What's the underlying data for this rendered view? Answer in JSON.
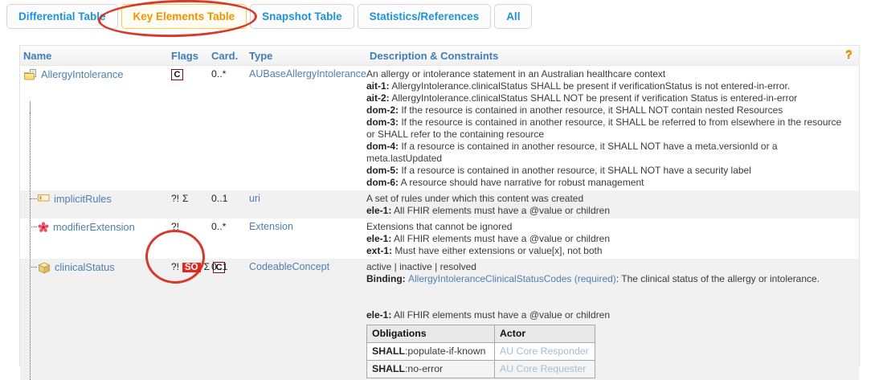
{
  "colors": {
    "tab_blue": "#1e93d6",
    "tab_active_orange": "#f39200",
    "tab_active_border": "#fcca4e",
    "header_blue": "#3f7cba",
    "link_blue": "#4e7fae",
    "pale_link": "#a3bdd7",
    "badge_red": "#e32a1e",
    "constraint_maroon": "#7c0b0b",
    "annotation_red": "#d6281a",
    "shaded_row": "#f1f1f1",
    "help_orange": "#f2a50c"
  },
  "tabs": {
    "items": [
      {
        "label": "Differential Table",
        "active": false
      },
      {
        "label": "Key Elements Table",
        "active": true
      },
      {
        "label": "Snapshot Table",
        "active": false
      },
      {
        "label": "Statistics/References",
        "active": false
      },
      {
        "label": "All",
        "active": false
      }
    ]
  },
  "table": {
    "headers": {
      "name": "Name",
      "flags": "Flags",
      "card": "Card.",
      "type": "Type",
      "description": "Description & Constraints"
    },
    "help_icon": "?",
    "rows": [
      {
        "name": "AllergyIntolerance",
        "icon": "resource-icon",
        "indent": 0,
        "shaded": false,
        "flags": [
          {
            "t": "C",
            "style": "box"
          }
        ],
        "card": "0..*",
        "type": "AUBaseAllergyIntolerance",
        "desc_lines": [
          [
            {
              "t": "An allergy or intolerance statement in an Australian healthcare context"
            }
          ],
          [
            {
              "t": "ait-1:",
              "b": true
            },
            {
              "t": " AllergyIntolerance.clinicalStatus SHALL be present if verificationStatus is not entered-in-error."
            }
          ],
          [
            {
              "t": "ait-2:",
              "b": true
            },
            {
              "t": " AllergyIntolerance.clinicalStatus SHALL NOT be present if verification Status is entered-in-error"
            }
          ],
          [
            {
              "t": "dom-2:",
              "b": true
            },
            {
              "t": " If the resource is contained in another resource, it SHALL NOT contain nested Resources"
            }
          ],
          [
            {
              "t": "dom-3:",
              "b": true
            },
            {
              "t": " If the resource is contained in another resource, it SHALL be referred to from elsewhere in the resource or SHALL refer to the containing resource"
            }
          ],
          [
            {
              "t": "dom-4:",
              "b": true
            },
            {
              "t": " If a resource is contained in another resource, it SHALL NOT have a meta.versionId or a meta.lastUpdated"
            }
          ],
          [
            {
              "t": "dom-5:",
              "b": true
            },
            {
              "t": " If a resource is contained in another resource, it SHALL NOT have a security label"
            }
          ],
          [
            {
              "t": "dom-6:",
              "b": true
            },
            {
              "t": " A resource should have narrative for robust management"
            }
          ]
        ]
      },
      {
        "name": "implicitRules",
        "icon": "primitive-icon",
        "indent": 1,
        "shaded": true,
        "flags": [
          {
            "t": "?!"
          },
          {
            "t": "Σ"
          }
        ],
        "card": "0..1",
        "type": "uri",
        "desc_lines": [
          [
            {
              "t": "A set of rules under which this content was created"
            }
          ],
          [
            {
              "t": "ele-1:",
              "b": true
            },
            {
              "t": " All FHIR elements must have a @value or children"
            }
          ]
        ]
      },
      {
        "name": "modifierExtension",
        "icon": "modifier-extension-icon",
        "indent": 1,
        "shaded": false,
        "flags": [
          {
            "t": "?!"
          }
        ],
        "card": "0..*",
        "type": "Extension",
        "desc_lines": [
          [
            {
              "t": "Extensions that cannot be ignored"
            }
          ],
          [
            {
              "t": "ele-1:",
              "b": true
            },
            {
              "t": " All FHIR elements must have a @value or children"
            }
          ],
          [
            {
              "t": "ext-1:",
              "b": true
            },
            {
              "t": " Must have either extensions or value[x], not both"
            }
          ]
        ]
      },
      {
        "name": "clinicalStatus",
        "icon": "datatype-icon",
        "indent": 1,
        "shaded": true,
        "flags": [
          {
            "t": "?!"
          },
          {
            "t": "SO",
            "style": "badge"
          },
          {
            "t": "Σ"
          },
          {
            "t": "C",
            "style": "box"
          }
        ],
        "card": "0..1",
        "type": "CodeableConcept",
        "desc_lines": [
          [
            {
              "t": "active | inactive | resolved"
            }
          ],
          [
            {
              "t": "Binding: ",
              "b": true
            },
            {
              "t": "AllergyIntoleranceClinicalStatusCodes",
              "link": true
            },
            {
              "t": " "
            },
            {
              "t": "(required)",
              "link": true
            },
            {
              "t": ": The clinical status of the allergy or intolerance."
            }
          ],
          [],
          [],
          [
            {
              "t": "ele-1:",
              "b": true
            },
            {
              "t": " All FHIR elements must have a @value or children"
            }
          ]
        ],
        "obligations": {
          "headers": [
            "Obligations",
            "Actor"
          ],
          "rows": [
            [
              [
                {
                  "t": "SHALL",
                  "b": true
                },
                {
                  "t": ":populate-if-known"
                }
              ],
              [
                {
                  "t": "AU Core Responder",
                  "link": true,
                  "pale": true
                }
              ]
            ],
            [
              [
                {
                  "t": "SHALL",
                  "b": true
                },
                {
                  "t": ":no-error"
                }
              ],
              [
                {
                  "t": "AU Core Requester",
                  "link": true,
                  "pale": true
                }
              ]
            ]
          ]
        }
      }
    ]
  }
}
